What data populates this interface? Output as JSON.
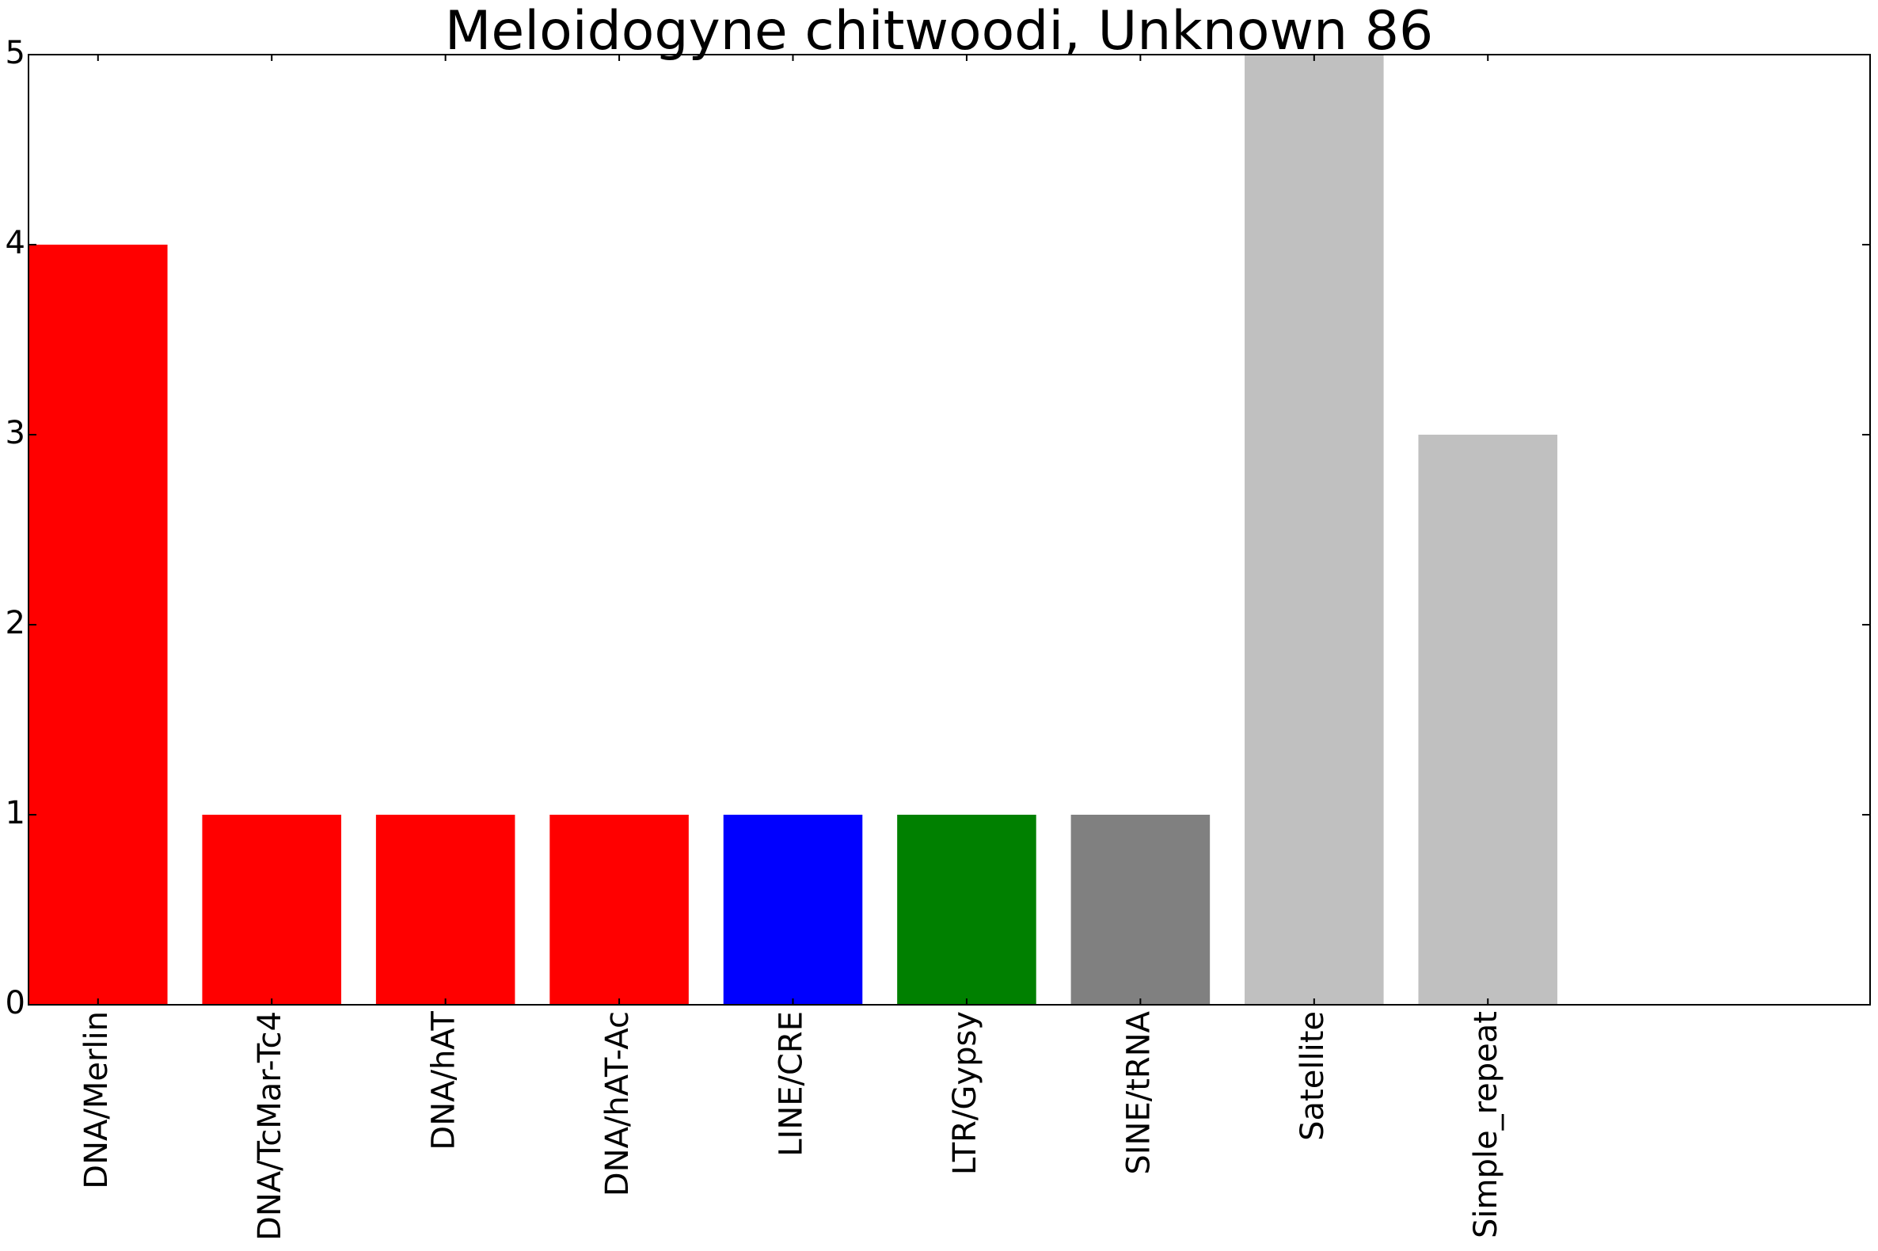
{
  "chart_data": {
    "type": "bar",
    "title": "Meloidogyne chitwoodi, Unknown 86",
    "xlabel": "",
    "ylabel": "",
    "ylim": [
      0,
      5
    ],
    "yticks": [
      0,
      1,
      2,
      3,
      4,
      5
    ],
    "grid": false,
    "categories": [
      "DNA/Merlin",
      "DNA/TcMar-Tc4",
      "DNA/hAT",
      "DNA/hAT-Ac",
      "LINE/CRE",
      "LTR/Gypsy",
      "SINE/tRNA",
      "Satellite",
      "Simple_repeat"
    ],
    "values": [
      4,
      1,
      1,
      1,
      1,
      1,
      1,
      5,
      3
    ],
    "colors": [
      "#ff0000",
      "#ff0000",
      "#ff0000",
      "#ff0000",
      "#0000ff",
      "#008000",
      "#808080",
      "#c0c0c0",
      "#c0c0c0"
    ]
  }
}
